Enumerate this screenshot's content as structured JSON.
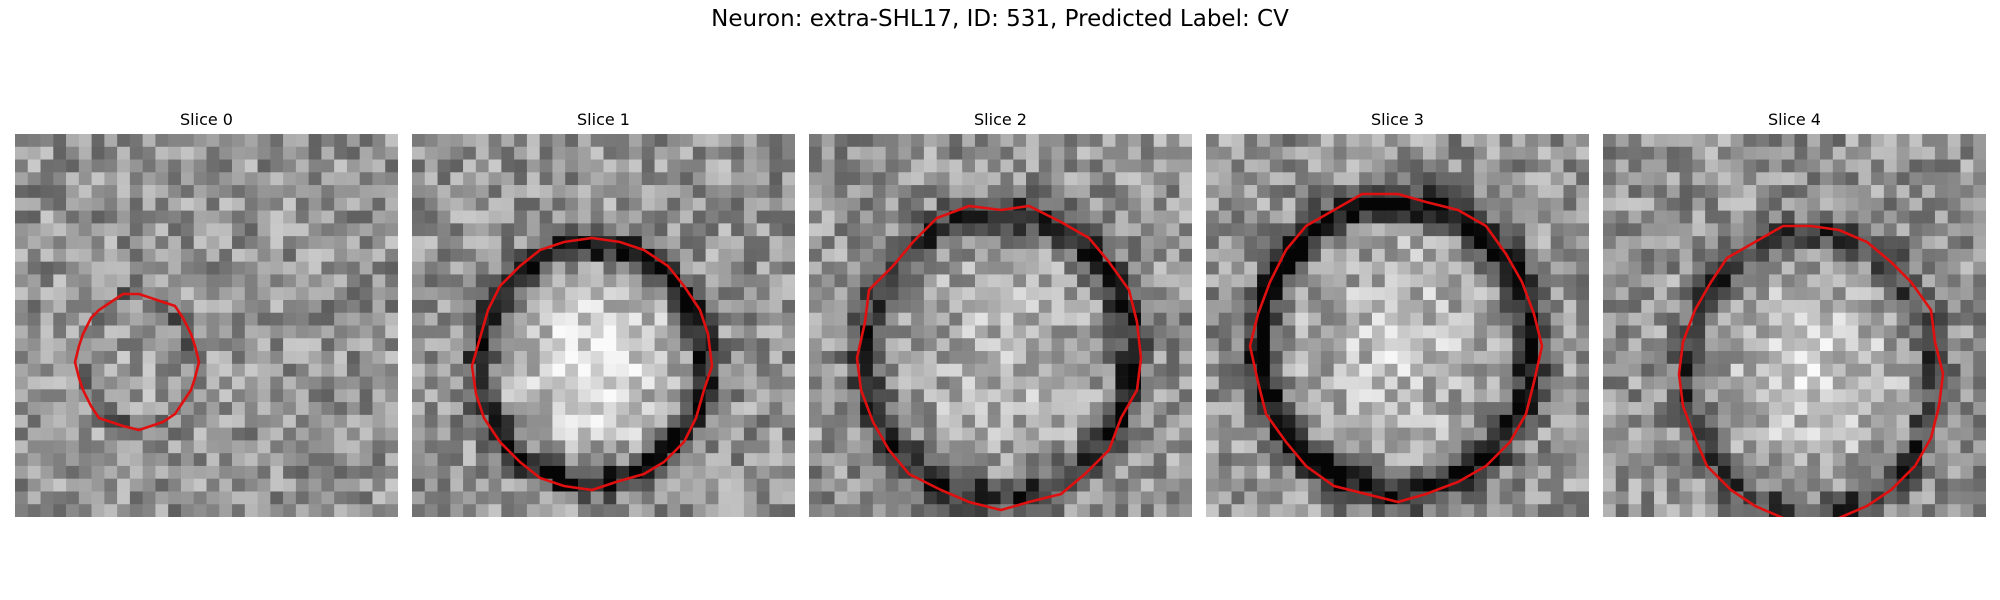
{
  "figure": {
    "title": "Neuron: extra-SHL17, ID: 531, Predicted Label: CV",
    "outline_color": "#e01010"
  },
  "slices": [
    {
      "title": "Slice 0",
      "seed": 11,
      "ring_strength": 0.2,
      "center_bright": 0.05
    },
    {
      "title": "Slice 1",
      "seed": 23,
      "ring_strength": 0.5,
      "center_bright": 0.35
    },
    {
      "title": "Slice 2",
      "seed": 37,
      "ring_strength": 0.45,
      "center_bright": 0.15
    },
    {
      "title": "Slice 3",
      "seed": 41,
      "ring_strength": 0.55,
      "center_bright": 0.2
    },
    {
      "title": "Slice 4",
      "seed": 59,
      "ring_strength": 0.35,
      "center_bright": 0.25
    }
  ]
}
